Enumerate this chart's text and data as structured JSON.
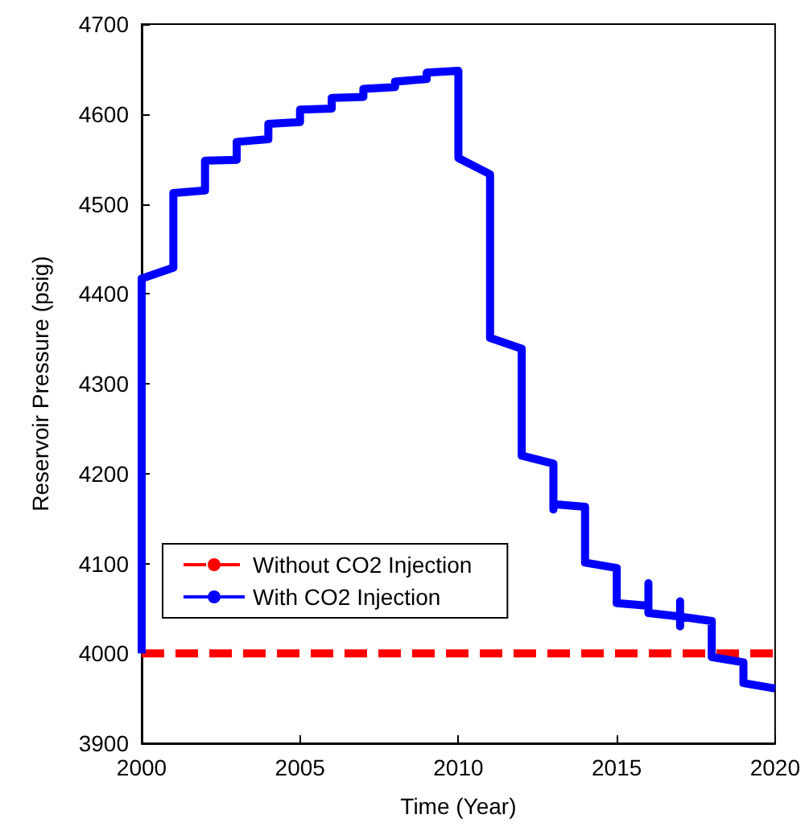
{
  "chart_data": {
    "type": "line",
    "xlabel": "Time (Year)",
    "ylabel": "Reservoir Pressure (psig)",
    "xlim": [
      2000,
      2020
    ],
    "xticks": [
      2000,
      2005,
      2010,
      2015,
      2020
    ],
    "ylim": [
      3900,
      4700
    ],
    "yticks": [
      3900,
      4000,
      4100,
      4200,
      4300,
      4400,
      4500,
      4600,
      4700
    ],
    "grid": false,
    "legend": "bottom left",
    "marker": "none",
    "series": [
      {
        "name": "Without CO2 Injection",
        "color": "#ff0000",
        "line_style": "dashed",
        "x": [
          2000,
          2020
        ],
        "values": [
          4000,
          4000
        ]
      },
      {
        "name": "With CO2 Injection",
        "color": "#0000ff",
        "line_style": "solid",
        "x": [
          2000,
          2000,
          2001,
          2001,
          2002,
          2002,
          2003,
          2003,
          2004,
          2004,
          2005,
          2005,
          2006,
          2006,
          2007,
          2007,
          2008,
          2008,
          2009,
          2009,
          2010,
          2010,
          2011,
          2011,
          2012,
          2012,
          2013,
          2013,
          2013,
          2014,
          2014,
          2015,
          2015,
          2016,
          2016,
          2016,
          2017,
          2017,
          2017,
          2017,
          2018,
          2018,
          2019,
          2019,
          2020
        ],
        "values": [
          4000,
          4417,
          4429,
          4512,
          4515,
          4548,
          4549,
          4569,
          4572,
          4589,
          4591,
          4605,
          4606,
          4618,
          4619,
          4628,
          4630,
          4636,
          4639,
          4646,
          4648,
          4551,
          4533,
          4351,
          4339,
          4220,
          4211,
          4160,
          4166,
          4163,
          4101,
          4095,
          4056,
          4053,
          4078,
          4045,
          4041,
          4058,
          4030,
          4041,
          4036,
          3996,
          3990,
          3967,
          3961
        ]
      }
    ]
  }
}
